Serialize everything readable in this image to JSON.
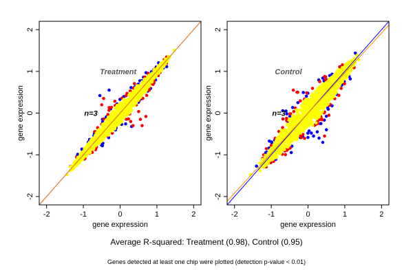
{
  "figure": {
    "caption": "Average R-squared: Treatment (0.98), Control (0.95)",
    "footnote": "Genes detected at least one chip were plotted (detection p-value < 0.01)"
  },
  "colors": {
    "points_main": "#ffff00",
    "points_up": "#ff0000",
    "points_down": "#0000ff",
    "line_fit": "#ff8c00",
    "line_identity": "#0000ff",
    "frame": "#000000",
    "panel_bg": "#ffffff"
  },
  "chart_data": [
    {
      "type": "scatter",
      "title": "Treatment",
      "annotation": "n=3",
      "xlabel": "gene expression",
      "ylabel": "gene expression",
      "xlim": [
        -2.2,
        2.2
      ],
      "ylim": [
        -2.2,
        2.2
      ],
      "xticks": [
        -2,
        -1,
        0,
        1,
        2
      ],
      "yticks": [
        -2,
        -1,
        0,
        1,
        2
      ],
      "legend": "none",
      "grid": false,
      "cloud": {
        "x_range": [
          -1.15,
          1.2
        ],
        "spread": 0.12,
        "r_squared": 0.98
      },
      "lines": [
        {
          "kind": "identity",
          "slope": 1.0,
          "intercept": 0.0
        },
        {
          "kind": "fit",
          "slope": 1.0,
          "intercept": 0.0
        }
      ],
      "outliers": [
        {
          "x": -0.55,
          "y": 0.42,
          "group": "down"
        },
        {
          "x": -0.45,
          "y": 0.35,
          "group": "up"
        },
        {
          "x": -0.5,
          "y": 0.2,
          "group": "up"
        },
        {
          "x": 0.35,
          "y": -0.3,
          "group": "up"
        },
        {
          "x": 0.6,
          "y": -0.3,
          "group": "up"
        },
        {
          "x": 0.7,
          "y": -0.08,
          "group": "up"
        },
        {
          "x": 0.55,
          "y": -0.15,
          "group": "up"
        },
        {
          "x": -0.3,
          "y": 0.55,
          "group": "down"
        }
      ]
    },
    {
      "type": "scatter",
      "title": "Control",
      "annotation": "n=3",
      "xlabel": "gene expression",
      "ylabel": "gene expression",
      "xlim": [
        -2.2,
        2.2
      ],
      "ylim": [
        -2.2,
        2.2
      ],
      "xticks": [
        -2,
        -1,
        0,
        1,
        2
      ],
      "yticks": [
        -2,
        -1,
        0,
        1,
        2
      ],
      "legend": "none",
      "grid": false,
      "cloud": {
        "x_range": [
          -1.15,
          1.2
        ],
        "spread": 0.2,
        "r_squared": 0.95
      },
      "lines": [
        {
          "kind": "identity",
          "slope": 1.0,
          "intercept": 0.0
        },
        {
          "kind": "fit",
          "slope": 0.96,
          "intercept": 0.0
        }
      ],
      "outliers": [
        {
          "x": -0.4,
          "y": 0.55,
          "group": "up"
        },
        {
          "x": -0.3,
          "y": 0.5,
          "group": "up"
        },
        {
          "x": 0.25,
          "y": -0.45,
          "group": "down"
        },
        {
          "x": 0.3,
          "y": -0.6,
          "group": "down"
        },
        {
          "x": 0.4,
          "y": -0.7,
          "group": "down"
        },
        {
          "x": 0.15,
          "y": -0.55,
          "group": "down"
        },
        {
          "x": 0.5,
          "y": -0.4,
          "group": "down"
        },
        {
          "x": -0.2,
          "y": -0.55,
          "group": "up"
        },
        {
          "x": 0.35,
          "y": -0.25,
          "group": "down"
        },
        {
          "x": 0.45,
          "y": -0.55,
          "group": "up"
        }
      ]
    }
  ]
}
